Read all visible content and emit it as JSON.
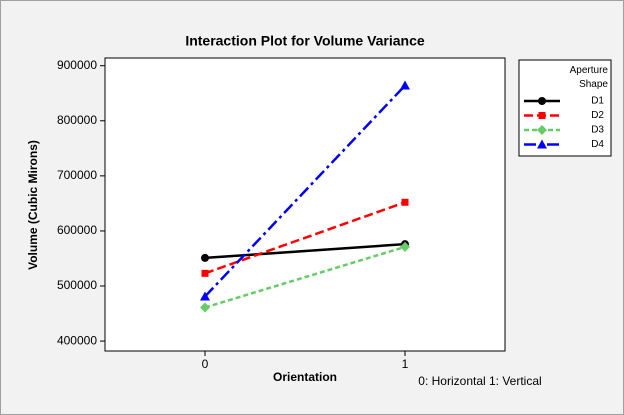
{
  "chart_data": {
    "type": "line",
    "title": "Interaction Plot for Volume Variance",
    "xlabel": "Orientation",
    "ylabel": "Volume (Cubic Mirons)",
    "annotation": "0: Horizontal  1: Vertical",
    "legend_title": "Aperture Shape",
    "x": [
      0,
      1
    ],
    "xlim": [
      -0.5,
      1.5
    ],
    "xticks": [
      0,
      1
    ],
    "ylim": [
      382000,
      914000
    ],
    "yticks": [
      400000,
      500000,
      600000,
      700000,
      800000,
      900000
    ],
    "legend": "right",
    "series": [
      {
        "name": "D1",
        "color": "#000000",
        "marker": "circle",
        "dash": "solid",
        "values": [
          551000,
          576000
        ]
      },
      {
        "name": "D2",
        "color": "#ff0000",
        "marker": "square",
        "dash": "dashed",
        "values": [
          523000,
          652000
        ]
      },
      {
        "name": "D3",
        "color": "#66cc66",
        "marker": "diamond",
        "dash": "dotted",
        "values": [
          461000,
          571000
        ]
      },
      {
        "name": "D4",
        "color": "#0000ff",
        "marker": "triangle",
        "dash": "dashdot",
        "values": [
          481000,
          864000
        ]
      }
    ]
  }
}
